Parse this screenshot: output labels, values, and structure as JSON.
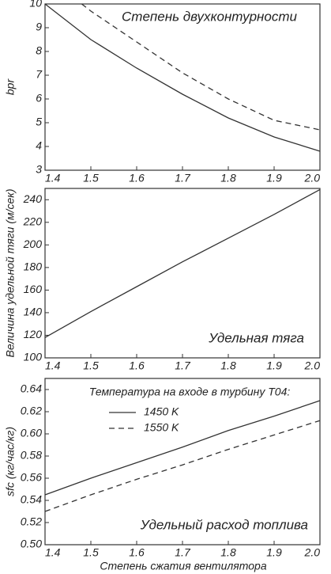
{
  "chart_data": [
    {
      "type": "line",
      "ylabel": "bpr",
      "annotation": "Степень двухконтурности",
      "xlim": [
        1.4,
        2.0
      ],
      "xticks": [
        1.4,
        1.5,
        1.6,
        1.7,
        1.8,
        1.9,
        {
          "value": 2.0,
          "label": "2.0"
        }
      ],
      "ylim": [
        3,
        10
      ],
      "yticks": [
        3,
        4,
        5,
        6,
        7,
        8,
        9,
        10
      ],
      "series": [
        {
          "color": "#333333",
          "style": "solid",
          "x": [
            1.4,
            1.5,
            1.6,
            1.7,
            1.8,
            1.9,
            2.0
          ],
          "values": [
            10,
            8.5,
            7.3,
            6.2,
            5.2,
            4.4,
            3.8
          ]
        },
        {
          "color": "#333333",
          "style": "dashed",
          "x": [
            1.48,
            1.5,
            1.6,
            1.7,
            1.8,
            1.9,
            2.0
          ],
          "values": [
            10,
            9.7,
            8.4,
            7.1,
            6.0,
            5.1,
            4.7
          ]
        }
      ]
    },
    {
      "type": "line",
      "ylabel": "Величина удельной тяги (м/сек)",
      "annotation": "Удельная тяга",
      "xlim": [
        1.4,
        2.0
      ],
      "xticks": [
        1.4,
        1.5,
        1.6,
        1.7,
        1.8,
        1.9,
        {
          "value": 2.0,
          "label": "2.0"
        }
      ],
      "ylim": [
        100,
        250
      ],
      "yticks": [
        100,
        120,
        140,
        160,
        180,
        200,
        220,
        240
      ],
      "series": [
        {
          "color": "#333333",
          "style": "solid",
          "x": [
            1.4,
            1.5,
            1.6,
            1.7,
            1.8,
            1.9,
            2.0
          ],
          "values": [
            118,
            141,
            163,
            185,
            206,
            227,
            249
          ]
        }
      ]
    },
    {
      "type": "line",
      "ylabel": "sfc (кг/час/кг)",
      "annotation": "Удельный расход топлива",
      "xlabel": "Степень сжатия вентилятора",
      "legend_title": "Температура на входе в турбину T04:",
      "xlim": [
        1.4,
        2.0
      ],
      "xticks": [
        1.4,
        1.5,
        1.6,
        1.7,
        1.8,
        1.9,
        {
          "value": 2.0,
          "label": "2.0"
        }
      ],
      "ylim": [
        0.5,
        0.65
      ],
      "yticks": [
        {
          "value": 0.5,
          "label": "0.50"
        },
        0.52,
        0.54,
        0.56,
        0.58,
        {
          "value": 0.6,
          "label": "0.60"
        },
        0.62,
        0.64
      ],
      "series": [
        {
          "name": "1450 K",
          "color": "#333333",
          "style": "solid",
          "x": [
            1.4,
            1.5,
            1.6,
            1.7,
            1.8,
            1.9,
            2.0
          ],
          "values": [
            0.545,
            0.56,
            0.574,
            0.588,
            0.603,
            0.616,
            0.63
          ]
        },
        {
          "name": "1550 K",
          "color": "#333333",
          "style": "dashed",
          "x": [
            1.4,
            1.5,
            1.6,
            1.7,
            1.8,
            1.9,
            2.0
          ],
          "values": [
            0.53,
            0.545,
            0.559,
            0.572,
            0.586,
            0.599,
            0.612
          ]
        }
      ]
    }
  ]
}
